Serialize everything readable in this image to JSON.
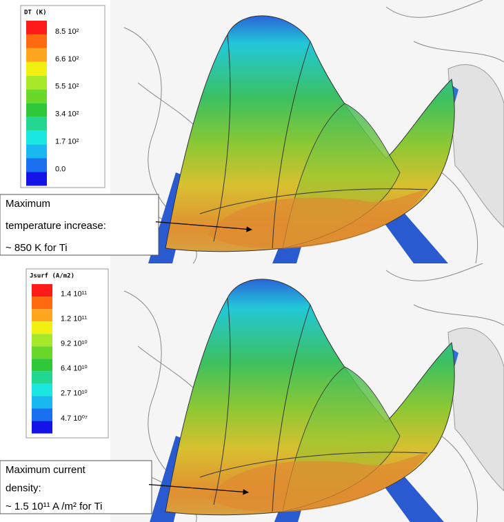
{
  "panels": [
    {
      "legend": {
        "title": "DT (K)",
        "labels": [
          "8.5 10²",
          "6.6 10²",
          "5.5 10²",
          "3.4 10²",
          "1.7 10²",
          "0.0"
        ]
      },
      "annotation": [
        "Maximum",
        "temperature increase:",
        "~ 850 K for Ti"
      ]
    },
    {
      "legend": {
        "title": "Jsurf (A/m2)",
        "labels": [
          "1.4 10¹¹",
          "1.2 10¹¹",
          "9.2 10¹⁰",
          "6.4 10¹⁰",
          "2.7 10¹⁰",
          "4.7 10⁰⁷"
        ]
      },
      "annotation": [
        "Maximum current",
        "density:",
        "~ 1.5 10¹¹ A /m² for Ti"
      ]
    }
  ]
}
